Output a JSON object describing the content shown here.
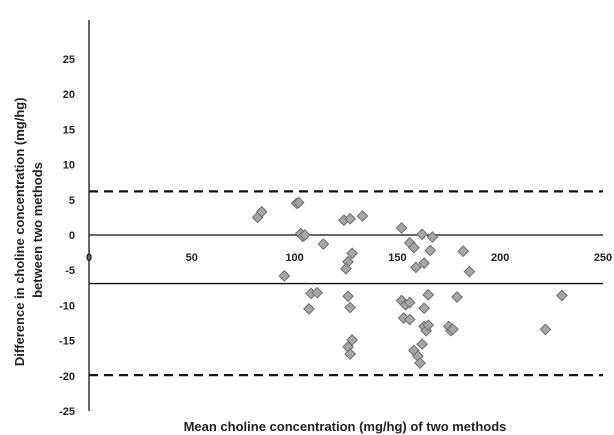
{
  "chart_data": {
    "type": "scatter",
    "title": "",
    "xlabel": "Mean choline concentration (mg/hg) of two methods",
    "ylabel_lines": [
      "Difference in choline concentration (mg/hg)",
      "between two methods"
    ],
    "xlim": [
      0,
      250
    ],
    "ylim": [
      -25,
      25
    ],
    "x_ticks": [
      0,
      50,
      100,
      150,
      200,
      250
    ],
    "y_ticks": [
      -25,
      -20,
      -15,
      -10,
      -5,
      0,
      5,
      10,
      15,
      20,
      25
    ],
    "grid": false,
    "legend": "none",
    "marker": "diamond",
    "marker_color": "#a6a6a6",
    "marker_edge_color": "#6f6f6f",
    "reference_lines": [
      {
        "y": 6.2,
        "style": "dashed"
      },
      {
        "y": -6.9,
        "style": "solid"
      },
      {
        "y": -19.9,
        "style": "dashed"
      }
    ],
    "points": [
      {
        "x": 82,
        "y": 2.5
      },
      {
        "x": 84,
        "y": 3.3
      },
      {
        "x": 101,
        "y": 4.5
      },
      {
        "x": 102,
        "y": 4.6
      },
      {
        "x": 103,
        "y": 0.2
      },
      {
        "x": 104,
        "y": -0.2
      },
      {
        "x": 105,
        "y": 0.0
      },
      {
        "x": 95,
        "y": -5.8
      },
      {
        "x": 107,
        "y": -10.5
      },
      {
        "x": 108,
        "y": -8.3
      },
      {
        "x": 111,
        "y": -8.2
      },
      {
        "x": 114,
        "y": -1.3
      },
      {
        "x": 124,
        "y": 2.1
      },
      {
        "x": 127,
        "y": 2.3
      },
      {
        "x": 133,
        "y": 2.7
      },
      {
        "x": 126,
        "y": -3.8
      },
      {
        "x": 125,
        "y": -4.8
      },
      {
        "x": 128,
        "y": -2.6
      },
      {
        "x": 126,
        "y": -8.7
      },
      {
        "x": 127,
        "y": -10.3
      },
      {
        "x": 126,
        "y": -15.9
      },
      {
        "x": 127,
        "y": -16.9
      },
      {
        "x": 128,
        "y": -14.9
      },
      {
        "x": 152,
        "y": 1.0
      },
      {
        "x": 156,
        "y": -1.1
      },
      {
        "x": 158,
        "y": -1.8
      },
      {
        "x": 159,
        "y": -4.6
      },
      {
        "x": 162,
        "y": 0.1
      },
      {
        "x": 163,
        "y": -4.0
      },
      {
        "x": 165,
        "y": -8.5
      },
      {
        "x": 166,
        "y": -2.2
      },
      {
        "x": 167,
        "y": -0.3
      },
      {
        "x": 152,
        "y": -9.3
      },
      {
        "x": 154,
        "y": -9.9
      },
      {
        "x": 156,
        "y": -9.6
      },
      {
        "x": 153,
        "y": -11.8
      },
      {
        "x": 156,
        "y": -12.0
      },
      {
        "x": 158,
        "y": -16.4
      },
      {
        "x": 160,
        "y": -17.2
      },
      {
        "x": 161,
        "y": -18.2
      },
      {
        "x": 162,
        "y": -15.5
      },
      {
        "x": 163,
        "y": -13.0
      },
      {
        "x": 164,
        "y": -13.6
      },
      {
        "x": 165,
        "y": -12.8
      },
      {
        "x": 163,
        "y": -10.4
      },
      {
        "x": 175,
        "y": -13.0
      },
      {
        "x": 176,
        "y": -13.6
      },
      {
        "x": 177,
        "y": -13.4
      },
      {
        "x": 179,
        "y": -8.8
      },
      {
        "x": 182,
        "y": -2.3
      },
      {
        "x": 185,
        "y": -5.2
      },
      {
        "x": 222,
        "y": -13.4
      },
      {
        "x": 230,
        "y": -8.6
      }
    ]
  }
}
